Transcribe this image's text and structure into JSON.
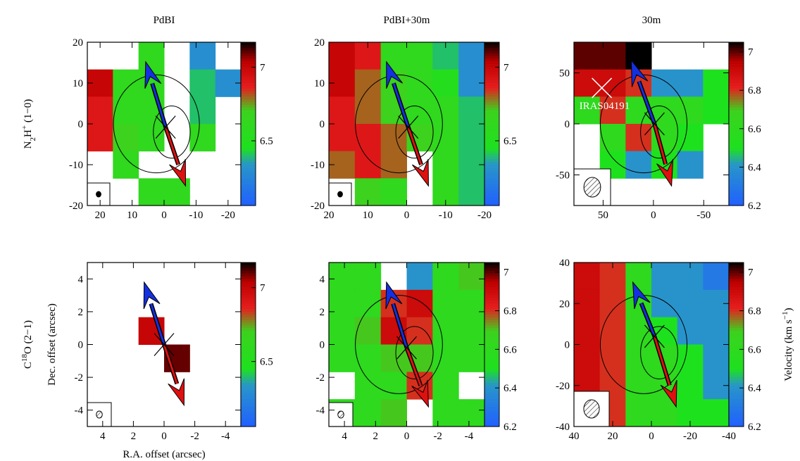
{
  "chart_data": [
    {
      "type": "heatmap",
      "title": "PdBI",
      "row_label": [
        {
          "text": "N"
        },
        {
          "text": "2",
          "sub": true
        },
        {
          "text": "H"
        },
        {
          "text": "+",
          "sup": true
        },
        {
          "text": " (1−0)"
        }
      ],
      "xlim": [
        24,
        -24
      ],
      "ylim": [
        -20,
        20
      ],
      "xticks": [
        20,
        10,
        0,
        -10,
        -20
      ],
      "yticks": [
        -20,
        -10,
        0,
        10,
        20
      ],
      "clim": [
        6.06,
        7.17
      ],
      "cticks": [
        6.5,
        7
      ],
      "values": [
        [
          null,
          null,
          6.6,
          null,
          6.3,
          null
        ],
        [
          7.0,
          6.6,
          6.6,
          null,
          6.4,
          6.3
        ],
        [
          6.9,
          6.6,
          6.6,
          null,
          6.4,
          null
        ],
        [
          6.9,
          6.7,
          6.6,
          null,
          6.6,
          null
        ],
        [
          null,
          6.6,
          null,
          null,
          null,
          null
        ],
        [
          null,
          null,
          6.6,
          6.6,
          null,
          null
        ]
      ]
    },
    {
      "type": "heatmap",
      "title": "PdBI+30m",
      "xlim": [
        20,
        -20
      ],
      "ylim": [
        -20,
        20
      ],
      "xticks": [
        20,
        10,
        0,
        -10,
        -20
      ],
      "yticks": [
        -20,
        -10,
        0,
        10,
        20
      ],
      "clim": [
        6.06,
        7.17
      ],
      "cticks": [
        6.5,
        7
      ],
      "values": [
        [
          7.0,
          6.9,
          6.6,
          6.6,
          6.4,
          6.3
        ],
        [
          7.0,
          6.8,
          6.7,
          6.6,
          6.5,
          6.3
        ],
        [
          6.9,
          6.8,
          6.7,
          6.6,
          6.6,
          6.4
        ],
        [
          6.9,
          6.9,
          6.8,
          6.7,
          6.6,
          6.4
        ],
        [
          6.8,
          6.9,
          6.8,
          null,
          6.6,
          6.4
        ],
        [
          null,
          6.7,
          6.6,
          null,
          6.6,
          6.4
        ]
      ]
    },
    {
      "type": "heatmap",
      "title": "30m",
      "annotation": "IRAS04191",
      "xlim": [
        79,
        -75
      ],
      "ylim": [
        -80,
        80
      ],
      "xticks": [
        50,
        0,
        -50
      ],
      "yticks": [
        -50,
        0,
        50
      ],
      "clim": [
        6.2,
        7.05
      ],
      "cticks": [
        6.2,
        6.4,
        6.6,
        6.8,
        7
      ],
      "values": [
        [
          7.0,
          7.0,
          7.1,
          null,
          null,
          null
        ],
        [
          6.9,
          6.9,
          6.8,
          6.4,
          6.4,
          6.5
        ],
        [
          6.6,
          6.8,
          6.6,
          6.6,
          6.6,
          6.5
        ],
        [
          null,
          6.6,
          6.8,
          6.6,
          6.5,
          null
        ],
        [
          null,
          6.5,
          6.4,
          6.5,
          6.4,
          null
        ],
        [
          null,
          null,
          null,
          null,
          null,
          null
        ]
      ]
    },
    {
      "type": "heatmap",
      "row_label": [
        {
          "text": "C"
        },
        {
          "text": "18",
          "sup": true
        },
        {
          "text": "O (2−1)"
        }
      ],
      "ylabel": "Dec. offset (arcsec)",
      "xlabel": "R.A. offset (arcsec)",
      "xlim": [
        5,
        -5
      ],
      "ylim": [
        -5,
        5
      ],
      "xticks": [
        4,
        2,
        0,
        -2,
        -4
      ],
      "yticks": [
        -4,
        -2,
        0,
        2,
        4
      ],
      "clim": [
        6.06,
        7.17
      ],
      "cticks": [
        6.5,
        7
      ],
      "values": [
        [
          null,
          null,
          null,
          null,
          null,
          null
        ],
        [
          null,
          null,
          null,
          null,
          null,
          null
        ],
        [
          null,
          null,
          7.0,
          null,
          null,
          null
        ],
        [
          null,
          null,
          null,
          7.1,
          null,
          null
        ],
        [
          null,
          null,
          null,
          null,
          null,
          null
        ],
        [
          null,
          null,
          null,
          null,
          null,
          null
        ]
      ]
    },
    {
      "type": "heatmap",
      "xlim": [
        5,
        -5
      ],
      "ylim": [
        -5,
        5
      ],
      "xticks": [
        4,
        2,
        0,
        -2,
        -4
      ],
      "yticks": [
        -4,
        -2,
        0,
        2,
        4
      ],
      "clim": [
        6.2,
        7.05
      ],
      "cticks": [
        6.2,
        6.4,
        6.6,
        6.8,
        7
      ],
      "values": [
        [
          6.6,
          6.6,
          null,
          6.4,
          6.6,
          6.7
        ],
        [
          6.6,
          6.6,
          6.8,
          6.9,
          6.6,
          6.6
        ],
        [
          6.6,
          6.7,
          6.9,
          6.8,
          6.6,
          6.6
        ],
        [
          6.6,
          6.6,
          6.7,
          6.7,
          6.6,
          6.6
        ],
        [
          null,
          6.6,
          6.6,
          6.8,
          6.6,
          null
        ],
        [
          6.6,
          6.6,
          6.7,
          null,
          6.6,
          6.6
        ]
      ]
    },
    {
      "type": "heatmap",
      "colorbar_label": [
        {
          "text": "Velocity (km s"
        },
        {
          "text": "−1",
          "sup": true
        },
        {
          "text": ")"
        }
      ],
      "xlim": [
        40,
        -40
      ],
      "ylim": [
        -40,
        40
      ],
      "xticks": [
        40,
        20,
        0,
        -20,
        -40
      ],
      "yticks": [
        -40,
        -20,
        0,
        20,
        40
      ],
      "clim": [
        6.2,
        7.05
      ],
      "cticks": [
        6.2,
        6.4,
        6.6,
        6.8,
        7
      ],
      "values": [
        [
          6.9,
          6.8,
          6.6,
          6.4,
          6.4,
          6.3
        ],
        [
          6.9,
          6.8,
          6.6,
          6.4,
          6.4,
          6.4
        ],
        [
          6.9,
          6.8,
          6.6,
          6.5,
          6.4,
          6.4
        ],
        [
          6.9,
          6.8,
          6.6,
          6.6,
          6.5,
          6.4
        ],
        [
          6.9,
          6.8,
          6.6,
          6.6,
          6.5,
          6.4
        ],
        [
          6.9,
          6.8,
          6.6,
          6.6,
          6.5,
          6.5
        ]
      ]
    }
  ]
}
